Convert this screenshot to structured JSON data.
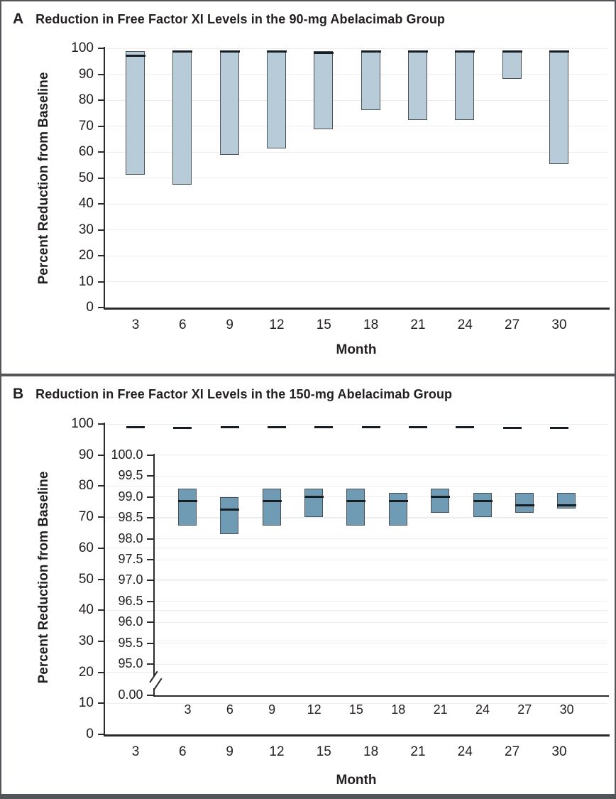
{
  "panels": [
    {
      "label": "A",
      "title": "Reduction in Free Factor XI Levels in the 90-mg Abelacimab Group",
      "ylabel": "Percent Reduction from Baseline",
      "xlabel": "Month"
    },
    {
      "label": "B",
      "title": "Reduction in Free Factor XI Levels in the 150-mg Abelacimab Group",
      "ylabel": "Percent Reduction from Baseline",
      "xlabel": "Month"
    }
  ],
  "colors": {
    "panel_a_box_fill": "#b7cbd8",
    "panel_b_box_fill": "#6f9cb4",
    "box_border": "#4a5157",
    "median_line": "#161d23",
    "axis": "#2b2b2b",
    "grid": "#ececec",
    "text": "#231f20",
    "frame": "#54555a"
  },
  "chart_data": [
    {
      "type": "boxplot",
      "panel": "A",
      "title": "Reduction in Free Factor XI Levels in the 90-mg Abelacimab Group",
      "xlabel": "Month",
      "ylabel": "Percent Reduction from Baseline",
      "ylim": [
        0,
        100
      ],
      "grid": true,
      "legend": false,
      "yticks": [
        "100",
        "90",
        "80",
        "70",
        "60",
        "50",
        "40",
        "30",
        "20",
        "10",
        "0"
      ],
      "categories": [
        "3",
        "6",
        "9",
        "12",
        "15",
        "18",
        "21",
        "24",
        "27",
        "30"
      ],
      "boxes": [
        {
          "month": "3",
          "q1": 51,
          "median": 97.2,
          "q3": 99
        },
        {
          "month": "6",
          "q1": 47,
          "median": 98.8,
          "q3": 99
        },
        {
          "month": "9",
          "q1": 58.5,
          "median": 98.8,
          "q3": 99
        },
        {
          "month": "12",
          "q1": 61,
          "median": 98.8,
          "q3": 99
        },
        {
          "month": "15",
          "q1": 68.5,
          "median": 98.2,
          "q3": 99
        },
        {
          "month": "18",
          "q1": 76,
          "median": 98.8,
          "q3": 99
        },
        {
          "month": "21",
          "q1": 72,
          "median": 98.8,
          "q3": 99
        },
        {
          "month": "24",
          "q1": 72,
          "median": 98.8,
          "q3": 99
        },
        {
          "month": "27",
          "q1": 88,
          "median": 98.8,
          "q3": 99
        },
        {
          "month": "30",
          "q1": 55,
          "median": 98.8,
          "q3": 99
        }
      ]
    },
    {
      "type": "boxplot",
      "panel": "B",
      "title": "Reduction in Free Factor XI Levels in the 150-mg Abelacimab Group",
      "xlabel": "Month",
      "ylabel": "Percent Reduction from Baseline",
      "ylim": [
        0,
        100
      ],
      "grid": true,
      "legend": false,
      "yticks": [
        "100",
        "90",
        "80",
        "70",
        "60",
        "50",
        "40",
        "30",
        "20",
        "10",
        "0"
      ],
      "categories": [
        "3",
        "6",
        "9",
        "12",
        "15",
        "18",
        "21",
        "24",
        "27",
        "30"
      ],
      "boxes": [
        {
          "month": "3",
          "q1": 98.3,
          "median": 98.9,
          "q3": 99.2
        },
        {
          "month": "6",
          "q1": 98.1,
          "median": 98.7,
          "q3": 99.0
        },
        {
          "month": "9",
          "q1": 98.3,
          "median": 98.9,
          "q3": 99.2
        },
        {
          "month": "12",
          "q1": 98.5,
          "median": 99.0,
          "q3": 99.2
        },
        {
          "month": "15",
          "q1": 98.3,
          "median": 98.9,
          "q3": 99.2
        },
        {
          "month": "18",
          "q1": 98.3,
          "median": 98.9,
          "q3": 99.1
        },
        {
          "month": "21",
          "q1": 98.6,
          "median": 99.0,
          "q3": 99.2
        },
        {
          "month": "24",
          "q1": 98.5,
          "median": 98.9,
          "q3": 99.1
        },
        {
          "month": "27",
          "q1": 98.6,
          "median": 98.8,
          "q3": 99.1
        },
        {
          "month": "30",
          "q1": 98.7,
          "median": 98.8,
          "q3": 99.1
        }
      ],
      "inset": {
        "ylim": [
          95,
          100
        ],
        "axis_break": true,
        "yticks": [
          "100.0",
          "99.5",
          "99.0",
          "98.5",
          "98.0",
          "97.5",
          "97.0",
          "96.5",
          "96.0",
          "95.5",
          "95.0",
          "0.00"
        ],
        "categories": [
          "3",
          "6",
          "9",
          "12",
          "15",
          "18",
          "21",
          "24",
          "27",
          "30"
        ]
      }
    }
  ]
}
